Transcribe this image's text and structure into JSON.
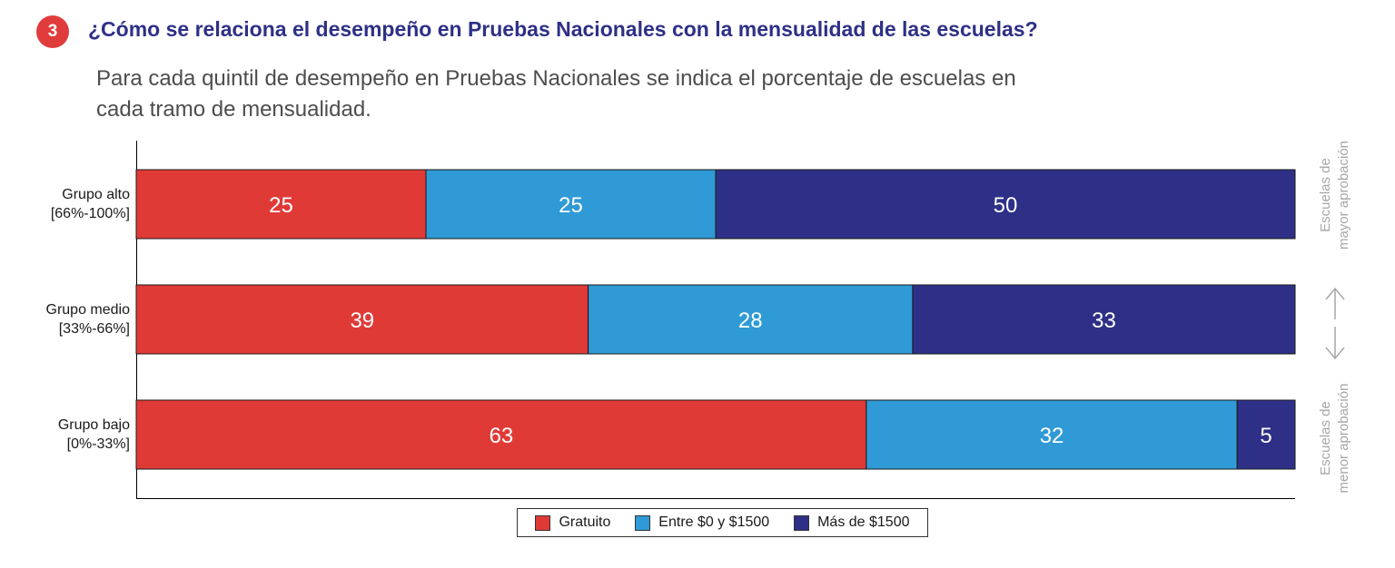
{
  "badge": {
    "number": "3",
    "color": "#e03c3b"
  },
  "header": {
    "title": "¿Cómo se relaciona el desempeño en Pruebas Nacionales con la mensualidad de las escuelas?",
    "title_color": "#2e3086",
    "subtitle": "Para cada quintil de desempeño en Pruebas Nacionales se indica el porcentaje de escuelas en cada tramo de mensualidad."
  },
  "side_labels": {
    "top_line1": "Escuelas de",
    "top_line2": "mayor aprobación",
    "bottom_line1": "Escuelas de",
    "bottom_line2": "menor aprobación",
    "arrow_up_icon": "arrow-up-icon",
    "arrow_down_icon": "arrow-down-icon"
  },
  "chart_data": {
    "type": "bar",
    "orientation": "horizontal",
    "stacked": true,
    "categories": [
      {
        "label_line1": "Grupo alto",
        "label_line2": "[66%-100%]"
      },
      {
        "label_line1": "Grupo medio",
        "label_line2": "[33%-66%]"
      },
      {
        "label_line1": "Grupo bajo",
        "label_line2": "[0%-33%]"
      }
    ],
    "series": [
      {
        "name": "Gratuito",
        "color": "#e03a37",
        "values": [
          25,
          39,
          63
        ]
      },
      {
        "name": "Entre $0 y $1500",
        "color": "#2f9ad6",
        "values": [
          25,
          28,
          32
        ]
      },
      {
        "name": "Más de $1500",
        "color": "#2e3087",
        "values": [
          50,
          33,
          5
        ]
      }
    ],
    "xlim": [
      0,
      100
    ],
    "data_labels": true,
    "grid": false,
    "legend_position": "bottom"
  }
}
